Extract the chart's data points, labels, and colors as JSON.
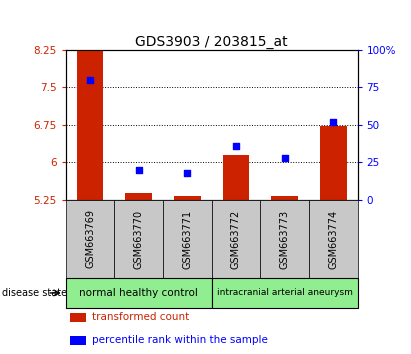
{
  "title": "GDS3903 / 203815_at",
  "samples": [
    "GSM663769",
    "GSM663770",
    "GSM663771",
    "GSM663772",
    "GSM663773",
    "GSM663774"
  ],
  "transformed_count": [
    8.62,
    5.38,
    5.32,
    6.15,
    5.32,
    6.72
  ],
  "percentile_rank": [
    80,
    20,
    18,
    36,
    28,
    52
  ],
  "ylim_left": [
    5.25,
    8.25
  ],
  "ylim_right": [
    0,
    100
  ],
  "yticks_left": [
    5.25,
    6.0,
    6.75,
    7.5,
    8.25
  ],
  "yticks_right": [
    0,
    25,
    50,
    75,
    100
  ],
  "ytick_labels_left": [
    "5.25",
    "6",
    "6.75",
    "7.5",
    "8.25"
  ],
  "ytick_labels_right": [
    "0",
    "25",
    "50",
    "75",
    "100%"
  ],
  "bar_color": "#cc2200",
  "dot_color": "#0000ff",
  "groups": [
    {
      "label": "normal healthy control",
      "samples": [
        0,
        1,
        2
      ],
      "color": "#90ee90"
    },
    {
      "label": "intracranial arterial aneurysm",
      "samples": [
        3,
        4,
        5
      ],
      "color": "#90ee90"
    }
  ],
  "xlabel": "disease state",
  "legend_items": [
    {
      "label": "transformed count",
      "color": "#cc2200"
    },
    {
      "label": "percentile rank within the sample",
      "color": "#0000ff"
    }
  ],
  "background_color": "#ffffff",
  "title_fontsize": 10,
  "tick_fontsize": 7.5
}
